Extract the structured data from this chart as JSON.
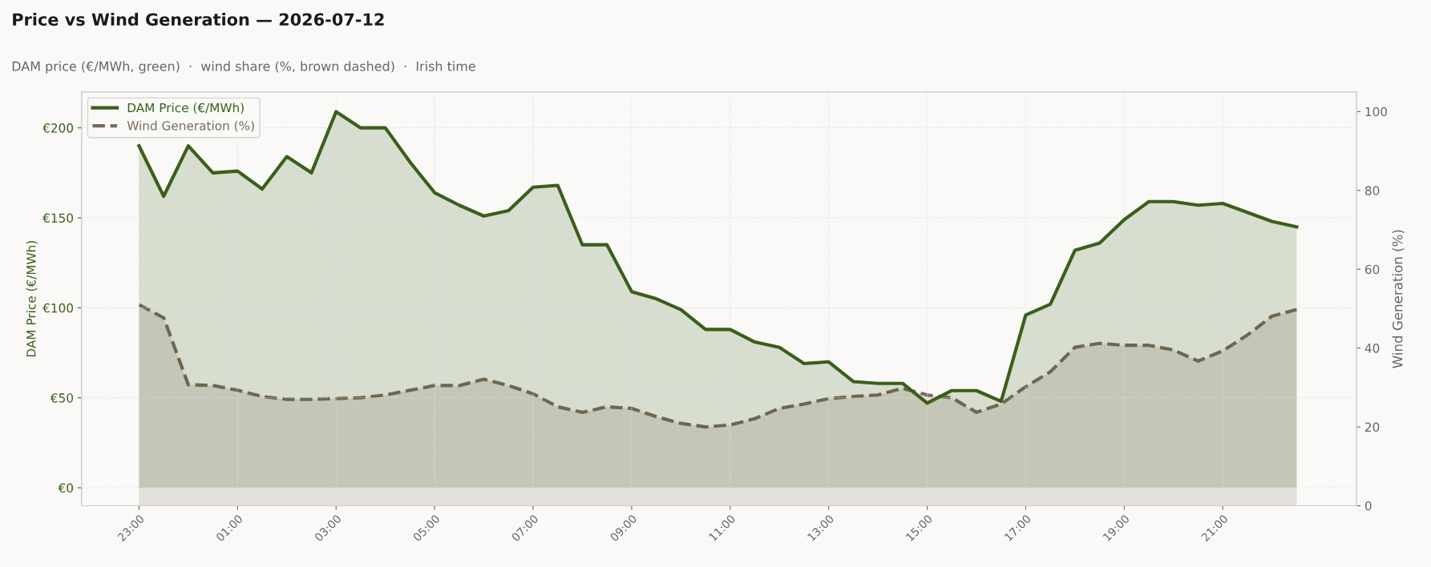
{
  "chart_data": {
    "type": "area",
    "title": "Price vs Wind Generation — 2026-07-12",
    "subtitle": "DAM price (€/MWh, green)  ·  wind share (%, brown dashed)  ·  Irish time",
    "ylabel": "DAM Price (€/MWh)",
    "y2label": "Wind Generation (%)",
    "x": [
      "2026-07-11T23:00",
      "2026-07-11T23:30",
      "2026-07-12T00:00",
      "2026-07-12T00:30",
      "2026-07-12T01:00",
      "2026-07-12T01:30",
      "2026-07-12T02:00",
      "2026-07-12T02:30",
      "2026-07-12T03:00",
      "2026-07-12T03:30",
      "2026-07-12T04:00",
      "2026-07-12T04:30",
      "2026-07-12T05:00",
      "2026-07-12T05:30",
      "2026-07-12T06:00",
      "2026-07-12T06:30",
      "2026-07-12T07:00",
      "2026-07-12T07:30",
      "2026-07-12T08:00",
      "2026-07-12T08:30",
      "2026-07-12T09:00",
      "2026-07-12T09:30",
      "2026-07-12T10:00",
      "2026-07-12T10:30",
      "2026-07-12T11:00",
      "2026-07-12T11:30",
      "2026-07-12T12:00",
      "2026-07-12T12:30",
      "2026-07-12T13:00",
      "2026-07-12T13:30",
      "2026-07-12T14:00",
      "2026-07-12T14:30",
      "2026-07-12T15:00",
      "2026-07-12T15:30",
      "2026-07-12T16:00",
      "2026-07-12T16:30",
      "2026-07-12T17:00",
      "2026-07-12T17:30",
      "2026-07-12T18:00",
      "2026-07-12T18:30",
      "2026-07-12T19:00",
      "2026-07-12T19:30",
      "2026-07-12T20:00",
      "2026-07-12T20:30",
      "2026-07-12T21:00",
      "2026-07-12T21:30",
      "2026-07-12T22:00",
      "2026-07-12T22:30"
    ],
    "series": [
      {
        "name": "DAM Price (€/MWh)",
        "color": "#3a5f1a",
        "line_style": "solid",
        "values": [
          190,
          162,
          190,
          175,
          176,
          166,
          184,
          175,
          209,
          200,
          200,
          181,
          164,
          157,
          151,
          154,
          167,
          168,
          135,
          135,
          109,
          105,
          99,
          88,
          88,
          81,
          78,
          69,
          70,
          59,
          58,
          58,
          47,
          54,
          54,
          48,
          96,
          102,
          132,
          136,
          149,
          159,
          159,
          157,
          158,
          153,
          148,
          145
        ]
      },
      {
        "name": "Wind Generation (%)",
        "axis": "y2",
        "color": "#7a6a5a",
        "line_style": "dashed",
        "values": [
          51,
          47.7,
          30.7,
          30.5,
          29.3,
          27.7,
          27,
          27,
          27.2,
          27.4,
          28.1,
          29.3,
          30.5,
          30.5,
          32.1,
          30.5,
          28.4,
          25.1,
          23.7,
          25.1,
          24.7,
          22.6,
          20.9,
          20,
          20.5,
          22.1,
          24.7,
          25.8,
          27.2,
          27.7,
          28.1,
          29.8,
          28.1,
          27.4,
          23.7,
          25.8,
          30.2,
          34,
          40.2,
          41.2,
          40.7,
          40.7,
          39.5,
          36.7,
          39.3,
          43.3,
          48.1,
          49.8
        ]
      }
    ],
    "xlim": [
      "2026-07-11T21:50",
      "2026-07-12T23:43"
    ],
    "xticks": [
      {
        "value": "2026-07-11T23:00",
        "label": "23:00"
      },
      {
        "value": "2026-07-12T01:00",
        "label": "01:00"
      },
      {
        "value": "2026-07-12T03:00",
        "label": "03:00"
      },
      {
        "value": "2026-07-12T05:00",
        "label": "05:00"
      },
      {
        "value": "2026-07-12T07:00",
        "label": "07:00"
      },
      {
        "value": "2026-07-12T09:00",
        "label": "09:00"
      },
      {
        "value": "2026-07-12T11:00",
        "label": "11:00"
      },
      {
        "value": "2026-07-12T13:00",
        "label": "13:00"
      },
      {
        "value": "2026-07-12T15:00",
        "label": "15:00"
      },
      {
        "value": "2026-07-12T17:00",
        "label": "17:00"
      },
      {
        "value": "2026-07-12T19:00",
        "label": "19:00"
      },
      {
        "value": "2026-07-12T21:00",
        "label": "21:00"
      }
    ],
    "ylim": [
      -10,
      220
    ],
    "yticks": [
      {
        "value": 0,
        "label": "€0"
      },
      {
        "value": 50,
        "label": "€50"
      },
      {
        "value": 100,
        "label": "€100"
      },
      {
        "value": 150,
        "label": "€150"
      },
      {
        "value": 200,
        "label": "€200"
      }
    ],
    "y2lim": [
      0,
      105
    ],
    "y2ticks": [
      0,
      20,
      40,
      60,
      80,
      100
    ],
    "grid": true,
    "legend": "top left"
  }
}
